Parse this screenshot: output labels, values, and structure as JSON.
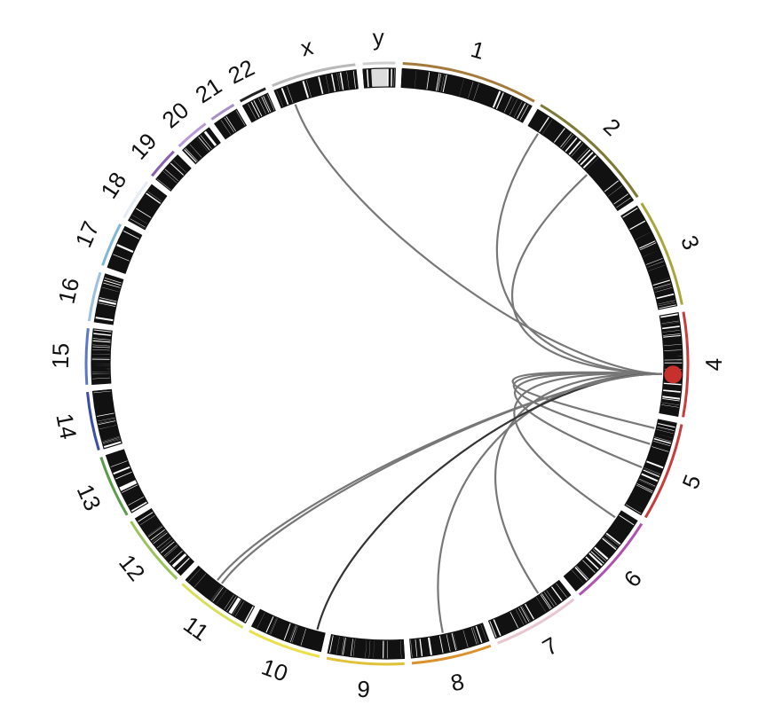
{
  "chromosomes": [
    {
      "name": "1",
      "size": 249,
      "color": "#a37a3c"
    },
    {
      "name": "2",
      "size": 243,
      "color": "#7d7a35"
    },
    {
      "name": "3",
      "size": 198,
      "color": "#a8a63a"
    },
    {
      "name": "4",
      "size": 191,
      "color": "#c83c3c"
    },
    {
      "name": "5",
      "size": 181,
      "color": "#c83c3c"
    },
    {
      "name": "6",
      "size": 171,
      "color": "#b052b0"
    },
    {
      "name": "7",
      "size": 159,
      "color": "#e8c6cf"
    },
    {
      "name": "8",
      "size": 146,
      "color": "#d9922e"
    },
    {
      "name": "9",
      "size": 141,
      "color": "#e0c23a"
    },
    {
      "name": "10",
      "size": 135,
      "color": "#ebe04a"
    },
    {
      "name": "11",
      "size": 135,
      "color": "#d8e05a"
    },
    {
      "name": "12",
      "size": 133,
      "color": "#9bc35a"
    },
    {
      "name": "13",
      "size": 115,
      "color": "#5a9a4a"
    },
    {
      "name": "14",
      "size": 107,
      "color": "#3a4ea8"
    },
    {
      "name": "15",
      "size": 102,
      "color": "#5a78c8"
    },
    {
      "name": "16",
      "size": 90,
      "color": "#9cc0e0"
    },
    {
      "name": "17",
      "size": 81,
      "color": "#7fb8d6"
    },
    {
      "name": "18",
      "size": 78,
      "color": "#e6ecf4"
    },
    {
      "name": "19",
      "size": 59,
      "color": "#8a5fb0"
    },
    {
      "name": "20",
      "size": 63,
      "color": "#b79ad6"
    },
    {
      "name": "21",
      "size": 48,
      "color": "#a78fc8"
    },
    {
      "name": "22",
      "size": 51,
      "color": "#222222"
    },
    {
      "name": "x",
      "size": 155,
      "color": "#b9b9b9"
    },
    {
      "name": "y",
      "size": 59,
      "color": "#cfcfcf"
    }
  ],
  "links": [
    {
      "from": [
        "4",
        0.6
      ],
      "to": [
        "2",
        0.1
      ]
    },
    {
      "from": [
        "4",
        0.6
      ],
      "to": [
        "2",
        0.62
      ]
    },
    {
      "from": [
        "4",
        0.6
      ],
      "to": [
        "x",
        0.18
      ]
    },
    {
      "from": [
        "4",
        0.6
      ],
      "to": [
        "5",
        0.1
      ]
    },
    {
      "from": [
        "4",
        0.6
      ],
      "to": [
        "5",
        0.28
      ]
    },
    {
      "from": [
        "4",
        0.6
      ],
      "to": [
        "5",
        0.55
      ]
    },
    {
      "from": [
        "4",
        0.6
      ],
      "to": [
        "6",
        0.1
      ]
    },
    {
      "from": [
        "4",
        0.6
      ],
      "to": [
        "7",
        0.3
      ]
    },
    {
      "from": [
        "4",
        0.6
      ],
      "to": [
        "8",
        0.55
      ]
    },
    {
      "from": [
        "4",
        0.6
      ],
      "to": [
        "10",
        0.12
      ]
    },
    {
      "from": [
        "4",
        0.6
      ],
      "to": [
        "11",
        0.58
      ]
    },
    {
      "from": [
        "4",
        0.6
      ],
      "to": [
        "11",
        0.66
      ]
    }
  ],
  "marker": {
    "chromosome": "4",
    "position": 0.6,
    "color": "#c8302b"
  },
  "colors": {
    "band": "#111111",
    "link": "#777777",
    "link_dark": "#333333"
  }
}
